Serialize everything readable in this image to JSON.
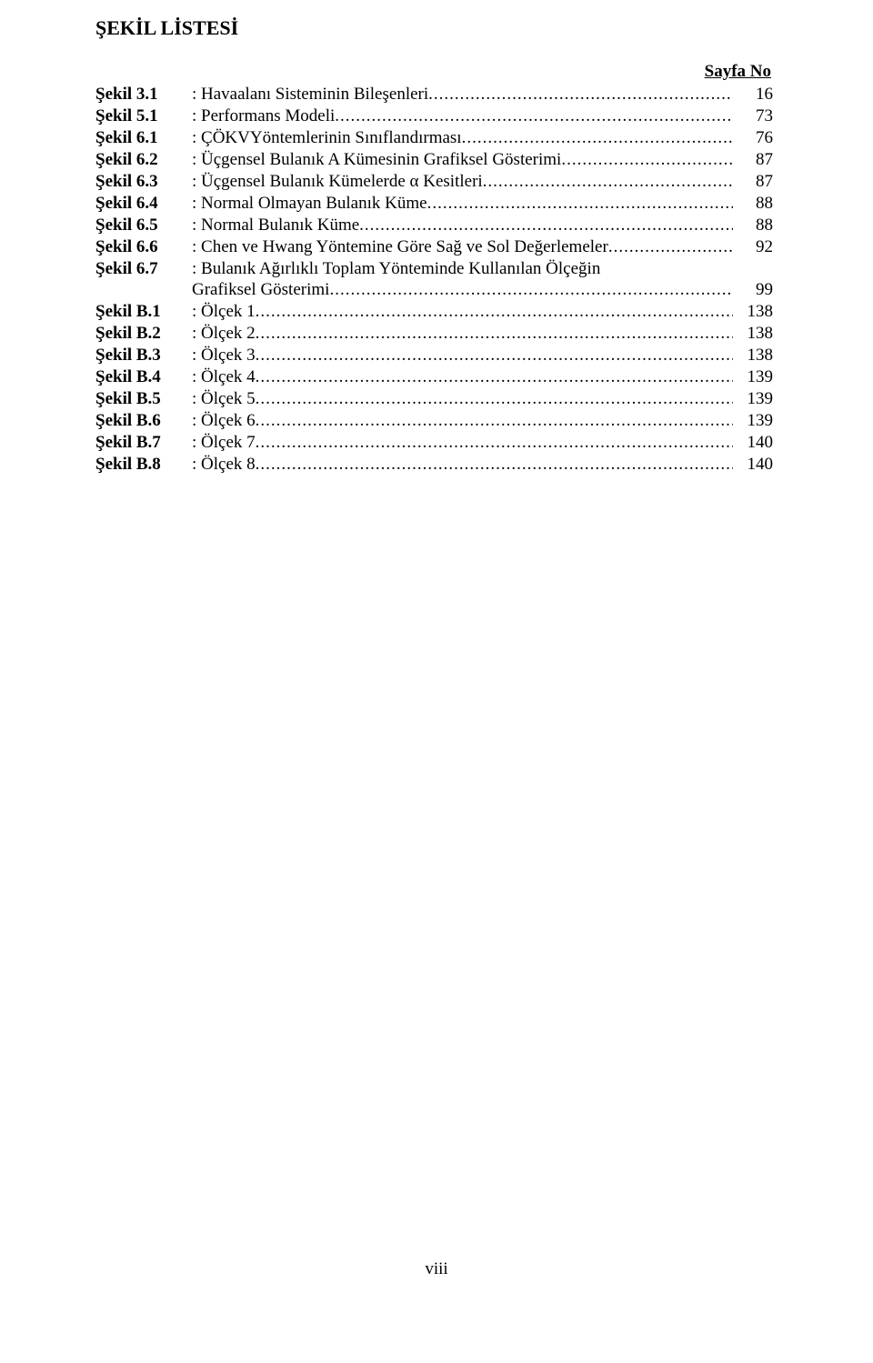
{
  "title": "ŞEKİL LİSTESİ",
  "page_header": "Sayfa No",
  "footer": "viii",
  "label_width_main": "106px",
  "label_width_b": "106px",
  "entries": [
    {
      "label": "Şekil 3.1",
      "desc": ": Havaalanı Sisteminin Bileşenleri",
      "page": "16"
    },
    {
      "label": "Şekil 5.1",
      "desc": ": Performans Modeli",
      "page": "73"
    },
    {
      "label": "Şekil 6.1",
      "desc": ": ÇÖKVYöntemlerinin Sınıflandırması",
      "page": "76"
    },
    {
      "label": "Şekil 6.2",
      "desc": ": Üçgensel Bulanık A Kümesinin Grafiksel Gösterimi",
      "page": "87"
    },
    {
      "label": "Şekil 6.3",
      "desc": ": Üçgensel Bulanık Kümelerde α Kesitleri",
      "page": "87"
    },
    {
      "label": "Şekil 6.4",
      "desc": ": Normal Olmayan Bulanık Küme",
      "page": "88"
    },
    {
      "label": "Şekil 6.5",
      "desc": ": Normal Bulanık Küme",
      "page": "88"
    },
    {
      "label": "Şekil 6.6",
      "desc": ": Chen ve Hwang Yöntemine Göre Sağ ve Sol Değerlemeler",
      "page": "92"
    },
    {
      "label": "Şekil 6.7",
      "desc_line1": ": Bulanık Ağırlıklı Toplam Yönteminde Kullanılan Ölçeğin",
      "desc_line2": "Grafiksel Gösterimi",
      "page": "99",
      "multiline": true
    },
    {
      "label": "Şekil B.1",
      "desc": ": Ölçek 1",
      "page": "138"
    },
    {
      "label": "Şekil B.2",
      "desc": ": Ölçek 2",
      "page": "138"
    },
    {
      "label": "Şekil B.3",
      "desc": ": Ölçek 3",
      "page": "138"
    },
    {
      "label": "Şekil B.4",
      "desc": ": Ölçek 4",
      "page": "139"
    },
    {
      "label": "Şekil B.5",
      "desc": ": Ölçek 5",
      "page": "139"
    },
    {
      "label": "Şekil B.6",
      "desc": ": Ölçek 6",
      "page": "139"
    },
    {
      "label": "Şekil B.7",
      "desc": ": Ölçek 7",
      "page": "140"
    },
    {
      "label": "Şekil B.8",
      "desc": ": Ölçek 8",
      "page": "140"
    }
  ]
}
